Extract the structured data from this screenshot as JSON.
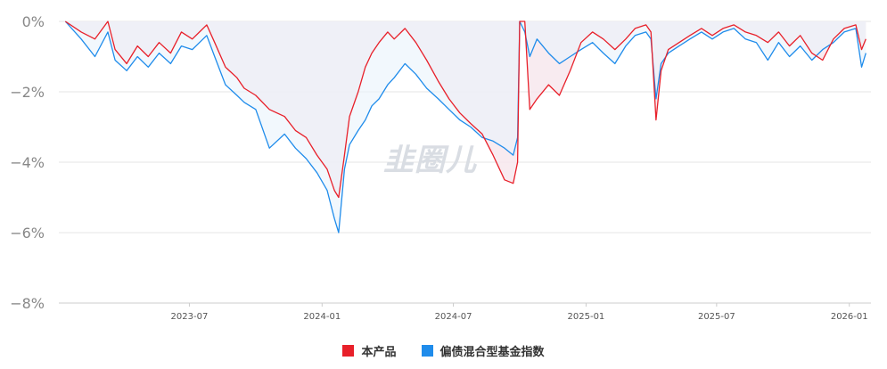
{
  "watermark": {
    "main": "韭圈儿",
    "accent_icon": "arrow-up-icon"
  },
  "legend": {
    "items": [
      {
        "label": "本产品",
        "color": "#e8202a"
      },
      {
        "label": "偏债混合型基金指数",
        "color": "#1f8ceb"
      }
    ]
  },
  "colors": {
    "product": "#e8202a",
    "index": "#1f8ceb",
    "fill_product": "#f6e6ec",
    "fill_index": "#eaf3fb",
    "grid": "#e6e6e6",
    "axis": "#cccccc"
  },
  "chart_data": {
    "type": "line",
    "ylim": [
      -8,
      0
    ],
    "xlim": [
      "2023-01-01",
      "2026-01-31"
    ],
    "y_ticks": [
      {
        "v": 0,
        "label": "0%"
      },
      {
        "v": -2,
        "label": "−2%"
      },
      {
        "v": -4,
        "label": "−4%"
      },
      {
        "v": -6,
        "label": "−6%"
      },
      {
        "v": -8,
        "label": "−8%"
      }
    ],
    "x_ticks": [
      {
        "date": "2023-07-01",
        "label": "2023-07"
      },
      {
        "date": "2024-01-01",
        "label": "2024-01"
      },
      {
        "date": "2024-07-01",
        "label": "2024-07"
      },
      {
        "date": "2025-01-01",
        "label": "2025-01"
      },
      {
        "date": "2025-07-01",
        "label": "2025-07"
      },
      {
        "date": "2026-01-01",
        "label": "2026-01"
      }
    ],
    "grid": true,
    "legend_position": "bottom-center",
    "series": [
      {
        "name": "本产品",
        "color": "#e8202a",
        "points": [
          [
            "2023-01-10",
            0
          ],
          [
            "2023-02-01",
            -0.3
          ],
          [
            "2023-02-20",
            -0.5
          ],
          [
            "2023-03-10",
            0
          ],
          [
            "2023-03-20",
            -0.8
          ],
          [
            "2023-04-05",
            -1.2
          ],
          [
            "2023-04-20",
            -0.7
          ],
          [
            "2023-05-05",
            -1.0
          ],
          [
            "2023-05-20",
            -0.6
          ],
          [
            "2023-06-05",
            -0.9
          ],
          [
            "2023-06-20",
            -0.3
          ],
          [
            "2023-07-05",
            -0.5
          ],
          [
            "2023-07-15",
            -0.3
          ],
          [
            "2023-07-25",
            -0.1
          ],
          [
            "2023-08-05",
            -0.6
          ],
          [
            "2023-08-20",
            -1.3
          ],
          [
            "2023-09-05",
            -1.6
          ],
          [
            "2023-09-15",
            -1.9
          ],
          [
            "2023-10-01",
            -2.1
          ],
          [
            "2023-10-20",
            -2.5
          ],
          [
            "2023-11-10",
            -2.7
          ],
          [
            "2023-11-25",
            -3.1
          ],
          [
            "2023-12-10",
            -3.3
          ],
          [
            "2023-12-25",
            -3.8
          ],
          [
            "2024-01-08",
            -4.2
          ],
          [
            "2024-01-18",
            -4.8
          ],
          [
            "2024-01-24",
            -5.0
          ],
          [
            "2024-02-01",
            -3.8
          ],
          [
            "2024-02-08",
            -2.7
          ],
          [
            "2024-02-20",
            -2.0
          ],
          [
            "2024-03-01",
            -1.3
          ],
          [
            "2024-03-10",
            -0.9
          ],
          [
            "2024-03-20",
            -0.6
          ],
          [
            "2024-04-01",
            -0.3
          ],
          [
            "2024-04-10",
            -0.5
          ],
          [
            "2024-04-25",
            -0.2
          ],
          [
            "2024-05-10",
            -0.6
          ],
          [
            "2024-05-25",
            -1.1
          ],
          [
            "2024-06-10",
            -1.7
          ],
          [
            "2024-06-25",
            -2.2
          ],
          [
            "2024-07-10",
            -2.6
          ],
          [
            "2024-07-25",
            -2.9
          ],
          [
            "2024-08-10",
            -3.2
          ],
          [
            "2024-08-25",
            -3.8
          ],
          [
            "2024-09-10",
            -4.5
          ],
          [
            "2024-09-22",
            -4.6
          ],
          [
            "2024-09-28",
            -4.0
          ],
          [
            "2024-10-01",
            0
          ],
          [
            "2024-10-08",
            0
          ],
          [
            "2024-10-15",
            -2.5
          ],
          [
            "2024-10-25",
            -2.2
          ],
          [
            "2024-11-10",
            -1.8
          ],
          [
            "2024-11-25",
            -2.1
          ],
          [
            "2024-12-10",
            -1.4
          ],
          [
            "2024-12-25",
            -0.6
          ],
          [
            "2025-01-10",
            -0.3
          ],
          [
            "2025-01-25",
            -0.5
          ],
          [
            "2025-02-10",
            -0.8
          ],
          [
            "2025-02-25",
            -0.5
          ],
          [
            "2025-03-10",
            -0.2
          ],
          [
            "2025-03-25",
            -0.1
          ],
          [
            "2025-04-01",
            -0.3
          ],
          [
            "2025-04-08",
            -2.8
          ],
          [
            "2025-04-15",
            -1.4
          ],
          [
            "2025-04-25",
            -0.8
          ],
          [
            "2025-05-10",
            -0.6
          ],
          [
            "2025-05-25",
            -0.4
          ],
          [
            "2025-06-10",
            -0.2
          ],
          [
            "2025-06-25",
            -0.4
          ],
          [
            "2025-07-10",
            -0.2
          ],
          [
            "2025-07-25",
            -0.1
          ],
          [
            "2025-08-10",
            -0.3
          ],
          [
            "2025-08-25",
            -0.4
          ],
          [
            "2025-09-10",
            -0.6
          ],
          [
            "2025-09-25",
            -0.3
          ],
          [
            "2025-10-10",
            -0.7
          ],
          [
            "2025-10-25",
            -0.4
          ],
          [
            "2025-11-10",
            -0.9
          ],
          [
            "2025-11-25",
            -1.1
          ],
          [
            "2025-12-10",
            -0.5
          ],
          [
            "2025-12-25",
            -0.2
          ],
          [
            "2026-01-10",
            -0.1
          ],
          [
            "2026-01-18",
            -0.8
          ],
          [
            "2026-01-24",
            -0.5
          ]
        ]
      },
      {
        "name": "偏债混合型基金指数",
        "color": "#1f8ceb",
        "points": [
          [
            "2023-01-10",
            0
          ],
          [
            "2023-02-01",
            -0.5
          ],
          [
            "2023-02-20",
            -1.0
          ],
          [
            "2023-03-10",
            -0.3
          ],
          [
            "2023-03-20",
            -1.1
          ],
          [
            "2023-04-05",
            -1.4
          ],
          [
            "2023-04-20",
            -1.0
          ],
          [
            "2023-05-05",
            -1.3
          ],
          [
            "2023-05-20",
            -0.9
          ],
          [
            "2023-06-05",
            -1.2
          ],
          [
            "2023-06-20",
            -0.7
          ],
          [
            "2023-07-05",
            -0.8
          ],
          [
            "2023-07-15",
            -0.6
          ],
          [
            "2023-07-25",
            -0.4
          ],
          [
            "2023-08-05",
            -1.0
          ],
          [
            "2023-08-20",
            -1.8
          ],
          [
            "2023-09-05",
            -2.1
          ],
          [
            "2023-09-15",
            -2.3
          ],
          [
            "2023-10-01",
            -2.5
          ],
          [
            "2023-10-20",
            -3.6
          ],
          [
            "2023-11-10",
            -3.2
          ],
          [
            "2023-11-25",
            -3.6
          ],
          [
            "2023-12-10",
            -3.9
          ],
          [
            "2023-12-25",
            -4.3
          ],
          [
            "2024-01-08",
            -4.8
          ],
          [
            "2024-01-18",
            -5.6
          ],
          [
            "2024-01-24",
            -6.0
          ],
          [
            "2024-02-01",
            -4.2
          ],
          [
            "2024-02-08",
            -3.5
          ],
          [
            "2024-02-20",
            -3.1
          ],
          [
            "2024-03-01",
            -2.8
          ],
          [
            "2024-03-10",
            -2.4
          ],
          [
            "2024-03-20",
            -2.2
          ],
          [
            "2024-04-01",
            -1.8
          ],
          [
            "2024-04-10",
            -1.6
          ],
          [
            "2024-04-25",
            -1.2
          ],
          [
            "2024-05-10",
            -1.5
          ],
          [
            "2024-05-25",
            -1.9
          ],
          [
            "2024-06-10",
            -2.2
          ],
          [
            "2024-06-25",
            -2.5
          ],
          [
            "2024-07-10",
            -2.8
          ],
          [
            "2024-07-25",
            -3.0
          ],
          [
            "2024-08-10",
            -3.3
          ],
          [
            "2024-08-25",
            -3.4
          ],
          [
            "2024-09-10",
            -3.6
          ],
          [
            "2024-09-22",
            -3.8
          ],
          [
            "2024-09-28",
            -3.3
          ],
          [
            "2024-10-01",
            0
          ],
          [
            "2024-10-08",
            -0.3
          ],
          [
            "2024-10-15",
            -1.0
          ],
          [
            "2024-10-25",
            -0.5
          ],
          [
            "2024-11-10",
            -0.9
          ],
          [
            "2024-11-25",
            -1.2
          ],
          [
            "2024-12-10",
            -1.0
          ],
          [
            "2024-12-25",
            -0.8
          ],
          [
            "2025-01-10",
            -0.6
          ],
          [
            "2025-01-25",
            -0.9
          ],
          [
            "2025-02-10",
            -1.2
          ],
          [
            "2025-02-25",
            -0.7
          ],
          [
            "2025-03-10",
            -0.4
          ],
          [
            "2025-03-25",
            -0.3
          ],
          [
            "2025-04-01",
            -0.5
          ],
          [
            "2025-04-08",
            -2.2
          ],
          [
            "2025-04-15",
            -1.2
          ],
          [
            "2025-04-25",
            -0.9
          ],
          [
            "2025-05-10",
            -0.7
          ],
          [
            "2025-05-25",
            -0.5
          ],
          [
            "2025-06-10",
            -0.3
          ],
          [
            "2025-06-25",
            -0.5
          ],
          [
            "2025-07-10",
            -0.3
          ],
          [
            "2025-07-25",
            -0.2
          ],
          [
            "2025-08-10",
            -0.5
          ],
          [
            "2025-08-25",
            -0.6
          ],
          [
            "2025-09-10",
            -1.1
          ],
          [
            "2025-09-25",
            -0.6
          ],
          [
            "2025-10-10",
            -1.0
          ],
          [
            "2025-10-25",
            -0.7
          ],
          [
            "2025-11-10",
            -1.1
          ],
          [
            "2025-11-25",
            -0.8
          ],
          [
            "2025-12-10",
            -0.6
          ],
          [
            "2025-12-25",
            -0.3
          ],
          [
            "2026-01-10",
            -0.2
          ],
          [
            "2026-01-18",
            -1.3
          ],
          [
            "2026-01-24",
            -0.9
          ]
        ]
      }
    ]
  }
}
